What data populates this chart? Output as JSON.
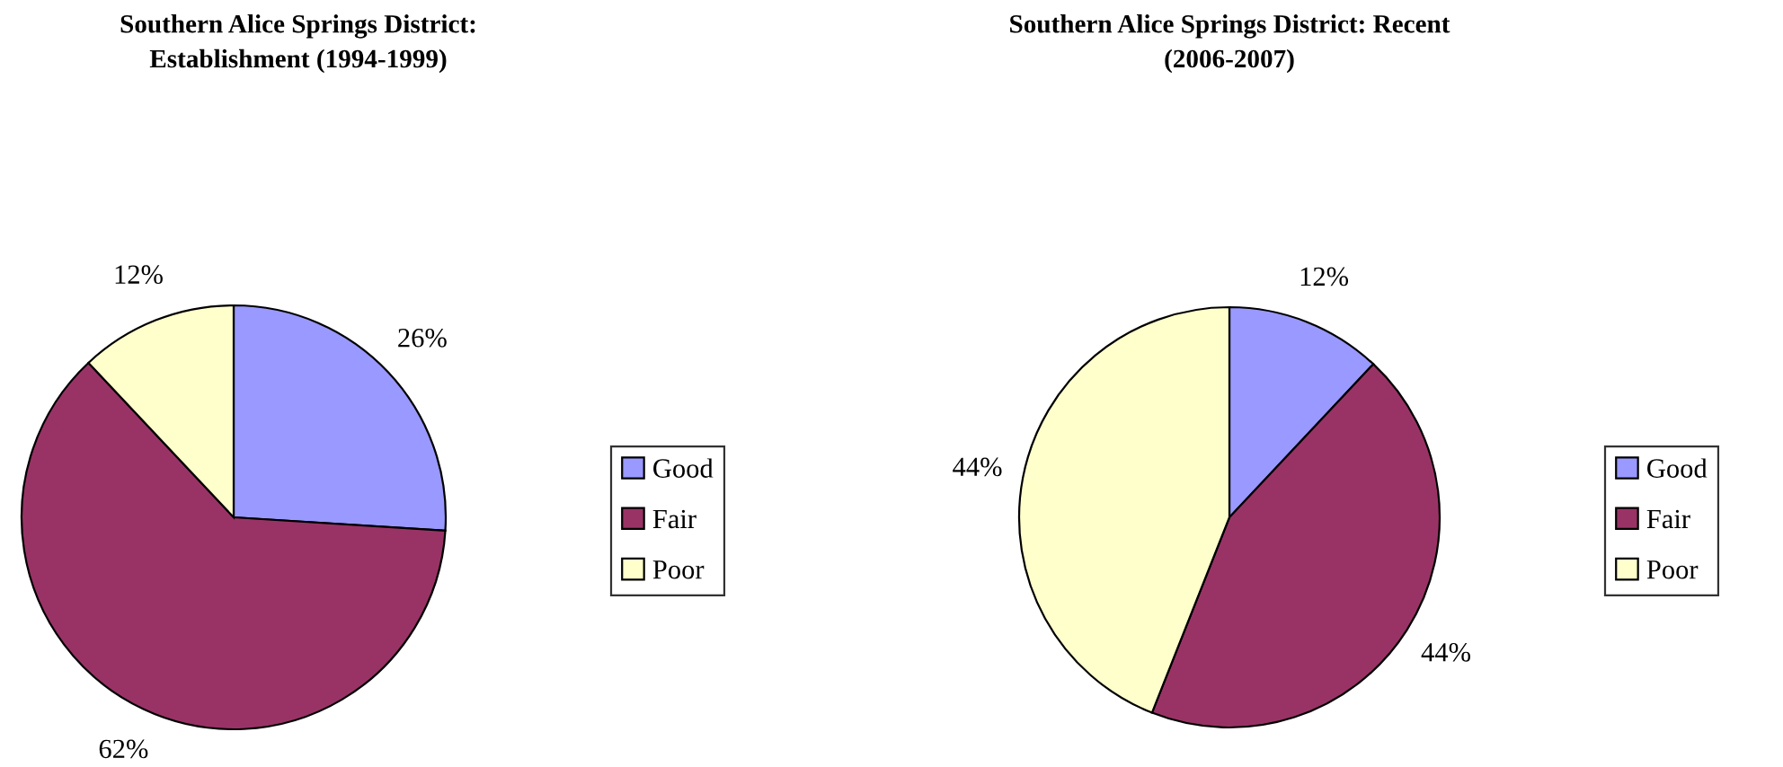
{
  "chart_data": [
    {
      "type": "pie",
      "title": "Southern Alice Springs District:\nEstablishment (1994-1999)",
      "categories": [
        "Good",
        "Fair",
        "Poor"
      ],
      "values": [
        26,
        62,
        12
      ],
      "value_labels": [
        "26%",
        "62%",
        "12%"
      ],
      "colors": [
        "#9999ff",
        "#993366",
        "#ffffcc"
      ],
      "legend": "right"
    },
    {
      "type": "pie",
      "title": "Southern Alice Springs District: Recent\n(2006-2007)",
      "categories": [
        "Good",
        "Fair",
        "Poor"
      ],
      "values": [
        12,
        44,
        44
      ],
      "value_labels": [
        "12%",
        "44%",
        "44%"
      ],
      "colors": [
        "#9999ff",
        "#993366",
        "#ffffcc"
      ],
      "legend": "right"
    }
  ]
}
